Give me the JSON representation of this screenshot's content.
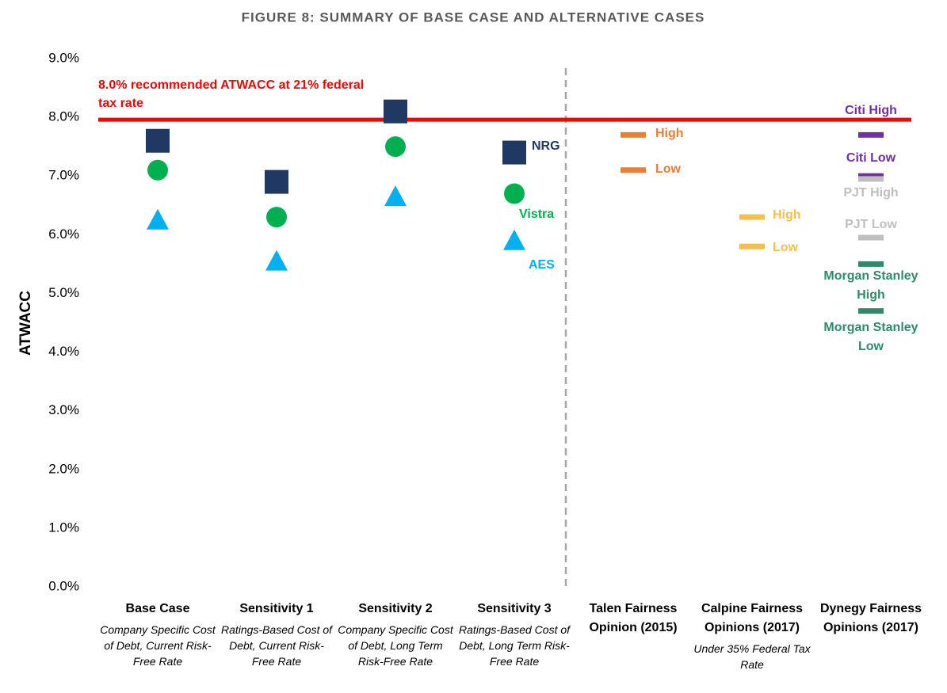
{
  "chart_data": {
    "type": "scatter",
    "title": "FIGURE 8: SUMMARY OF BASE CASE AND ALTERNATIVE CASES",
    "y_label": "ATWACC",
    "categories": [
      "Base Case",
      "Sensitivity 1",
      "Sensitivity 2",
      "Sensitivity 3",
      "Talen Fairness Opinion (2015)",
      "Calpine Fairness Opinions (2017)",
      "Dynegy Fairness Opinions (2017)"
    ],
    "category_notes": [
      "Company Specific Cost of Debt, Current Risk-Free Rate",
      "Ratings-Based Cost of Debt, Current Risk-Free Rate",
      "Company Specific Cost of Debt, Long Term Risk-Free Rate",
      "Ratings-Based Cost of Debt, Long Term Risk-Free Rate",
      null,
      "Under 35% Federal Tax Rate",
      null
    ],
    "ylim": [
      0,
      9
    ],
    "yticks": [
      {
        "value": 0,
        "label": "0.0%"
      },
      {
        "value": 1,
        "label": "1.0%"
      },
      {
        "value": 2,
        "label": "2.0%"
      },
      {
        "value": 3,
        "label": "3.0%"
      },
      {
        "value": 4,
        "label": "4.0%"
      },
      {
        "value": 5,
        "label": "5.0%"
      },
      {
        "value": 6,
        "label": "6.0%"
      },
      {
        "value": 7,
        "label": "7.0%"
      },
      {
        "value": 8,
        "label": "8.0%"
      },
      {
        "value": 9,
        "label": "9.0%"
      }
    ],
    "grid": false,
    "reference_line": {
      "value": 7.96,
      "color": "#ff0000",
      "label": "8.0% recommended ATWACC at 21% federal tax rate"
    },
    "series": [
      {
        "name": "NRG",
        "color": "#1f3864",
        "marker": "square",
        "values": [
          7.6,
          6.9,
          8.1,
          7.4,
          null,
          null,
          null
        ]
      },
      {
        "name": "Vistra",
        "color": "#00b050",
        "marker": "circle",
        "values": [
          7.1,
          6.3,
          7.5,
          6.7,
          null,
          null,
          null
        ]
      },
      {
        "name": "AES",
        "color": "#00b0f0",
        "marker": "triangle",
        "values": [
          6.25,
          5.55,
          6.65,
          5.9,
          null,
          null,
          null
        ]
      },
      {
        "name": "High",
        "color": "#ed7d31",
        "marker": "dash",
        "values": [
          null,
          null,
          null,
          null,
          7.7,
          null,
          null
        ]
      },
      {
        "name": "Low",
        "color": "#ed7d31",
        "marker": "dash",
        "values": [
          null,
          null,
          null,
          null,
          7.1,
          null,
          null
        ]
      },
      {
        "name": "High",
        "color": "#f4c04a",
        "marker": "dash",
        "values": [
          null,
          null,
          null,
          null,
          null,
          6.3,
          null
        ]
      },
      {
        "name": "Low",
        "color": "#f4c04a",
        "marker": "dash",
        "values": [
          null,
          null,
          null,
          null,
          null,
          5.8,
          null
        ]
      },
      {
        "name": "Citi High",
        "color": "#7030a0",
        "marker": "dash",
        "values": [
          null,
          null,
          null,
          null,
          null,
          null,
          7.7
        ]
      },
      {
        "name": "Citi Low",
        "color": "#7030a0",
        "marker": "dash",
        "values": [
          null,
          null,
          null,
          null,
          null,
          null,
          7.0
        ]
      },
      {
        "name": "PJT High",
        "color": "#bfbfbf",
        "marker": "dash",
        "values": [
          null,
          null,
          null,
          null,
          null,
          null,
          6.95
        ]
      },
      {
        "name": "PJT Low",
        "color": "#bfbfbf",
        "marker": "dash",
        "values": [
          null,
          null,
          null,
          null,
          null,
          null,
          5.95
        ]
      },
      {
        "name": "Morgan Stanley High",
        "color": "#2e8b6a",
        "marker": "dash",
        "values": [
          null,
          null,
          null,
          null,
          null,
          null,
          5.5
        ]
      },
      {
        "name": "Morgan Stanley Low",
        "color": "#2e8b6a",
        "marker": "dash",
        "values": [
          null,
          null,
          null,
          null,
          null,
          null,
          4.7
        ]
      }
    ]
  }
}
